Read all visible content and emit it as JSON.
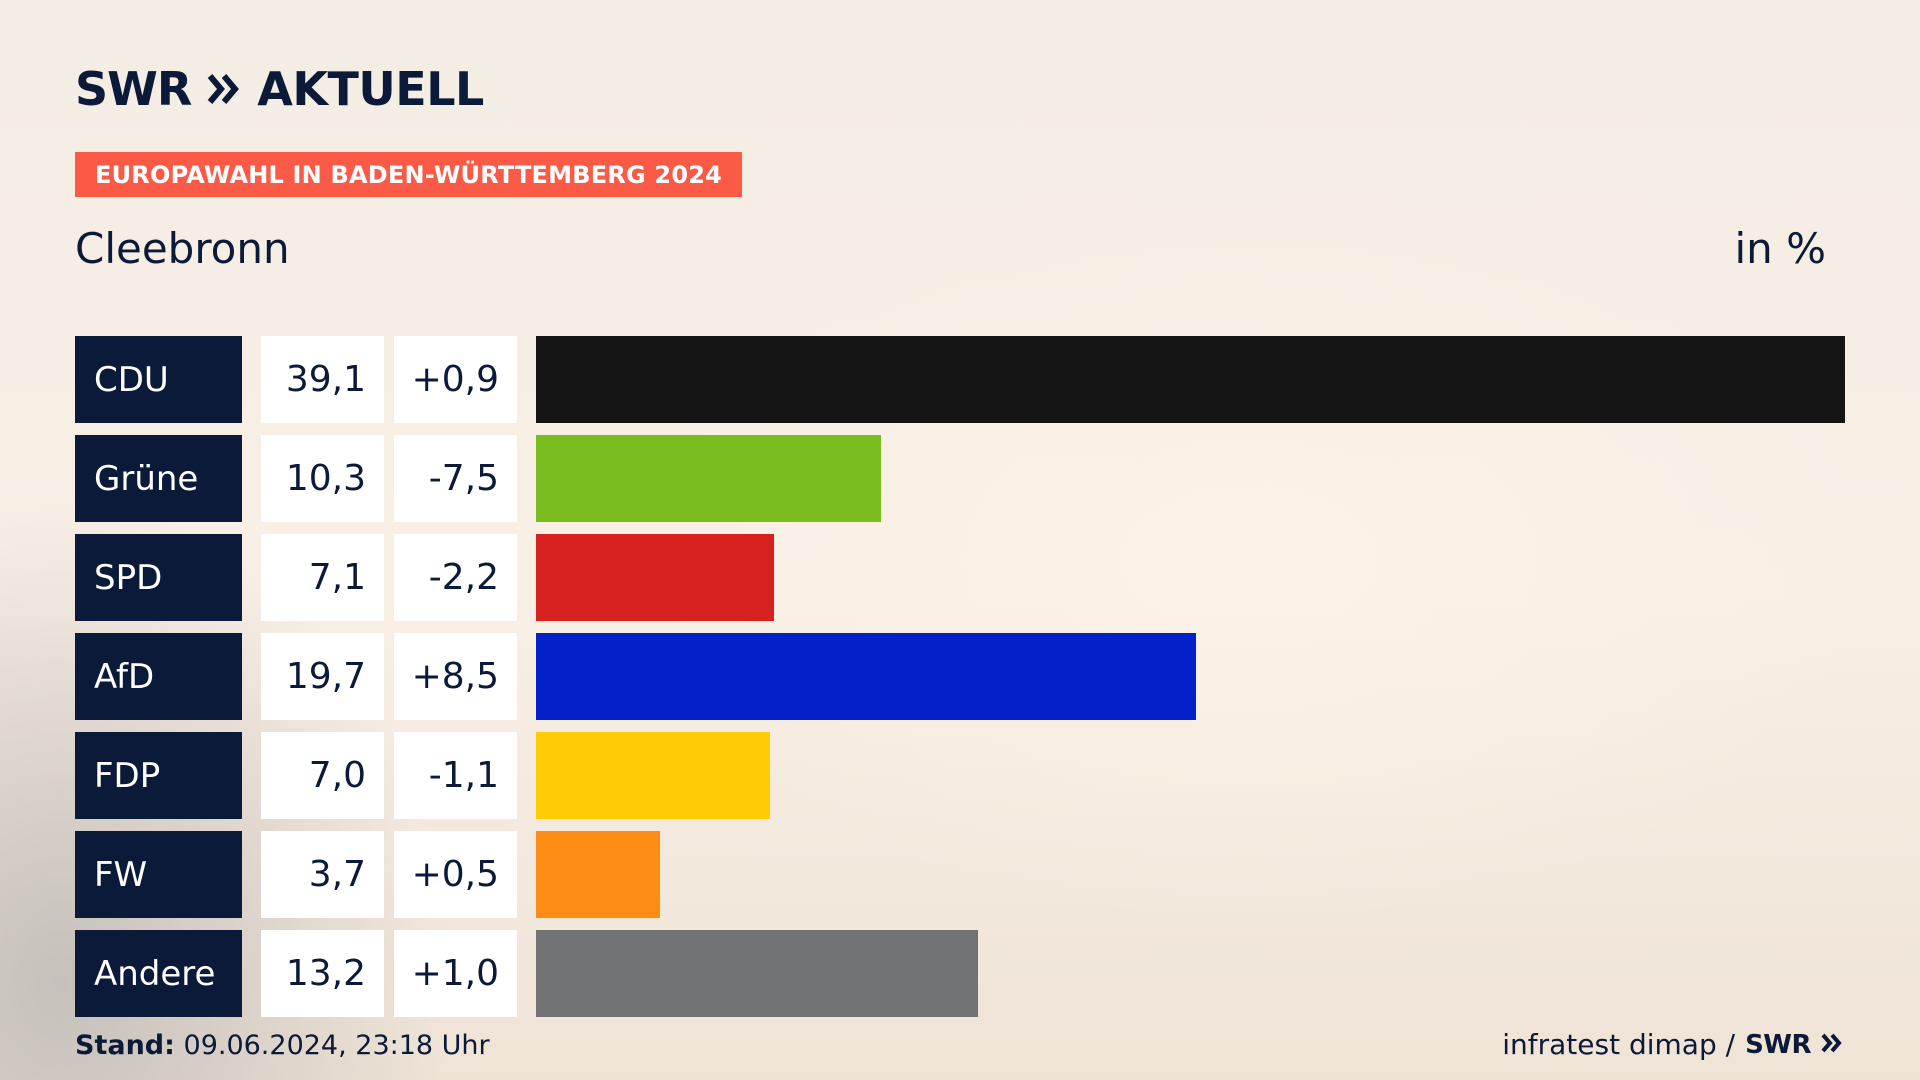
{
  "brand": {
    "logo_text": "SWR",
    "title": "AKTUELL",
    "logo_icon": "double-chevron-icon"
  },
  "banner": "EUROPAWAHL IN BADEN-WÜRTTEMBERG 2024",
  "place": "Cleebronn",
  "unit": "in %",
  "colors": {
    "navy": "#0c1a3a",
    "banner": "#fb5b46"
  },
  "chart_data": {
    "type": "bar",
    "orientation": "horizontal",
    "categories": [
      "CDU",
      "Grüne",
      "SPD",
      "AfD",
      "FDP",
      "FW",
      "Andere"
    ],
    "values": [
      39.1,
      10.3,
      7.1,
      19.7,
      7.0,
      3.7,
      13.2
    ],
    "value_labels": [
      "39,1",
      "10,3",
      "7,1",
      "19,7",
      "7,0",
      "3,7",
      "13,2"
    ],
    "diff_labels": [
      "+0,9",
      "-7,5",
      "-2,2",
      "+8,5",
      "-1,1",
      "+0,5",
      "+1,0"
    ],
    "diffs": [
      0.9,
      -7.5,
      -2.2,
      8.5,
      -1.1,
      0.5,
      1.0
    ],
    "colors": [
      "#141414",
      "#7abd1e",
      "#d7211e",
      "#0420c8",
      "#ffcc06",
      "#fd8c14",
      "#707274"
    ],
    "xlim": [
      0,
      39.1
    ],
    "grid": false
  },
  "footer": {
    "stand_label": "Stand:",
    "stand_value": "09.06.2024, 23:18 Uhr",
    "source": "infratest dimap /",
    "source_logo": "SWR"
  }
}
